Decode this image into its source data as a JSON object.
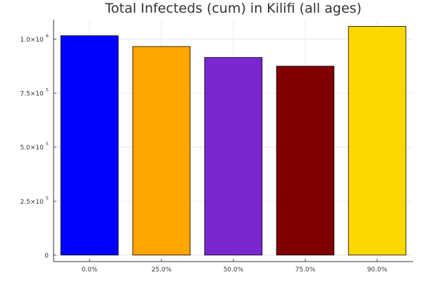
{
  "chart_data": {
    "type": "bar",
    "title": "Total Infecteds (cum) in Kilifi (all ages)",
    "xlabel": "",
    "ylabel": "",
    "categories": [
      "0.0%",
      "25.0%",
      "50.0%",
      "75.0%",
      "90.0%"
    ],
    "values": [
      1016000,
      966000,
      915000,
      875000,
      1059000
    ],
    "colors": [
      "#0000ff",
      "#ffa500",
      "#7a27d0",
      "#800000",
      "#ffd700"
    ],
    "ylim": [
      -30000,
      1090000
    ],
    "yticks": [
      {
        "value": 0,
        "mantissa": "0",
        "exp": ""
      },
      {
        "value": 250000,
        "mantissa": "2.5×10",
        "exp": "5"
      },
      {
        "value": 500000,
        "mantissa": "5.0×10",
        "exp": "5"
      },
      {
        "value": 750000,
        "mantissa": "7.5×10",
        "exp": "5"
      },
      {
        "value": 1000000,
        "mantissa": "1.0×10",
        "exp": "6"
      }
    ],
    "grid": true,
    "legend": "none"
  }
}
